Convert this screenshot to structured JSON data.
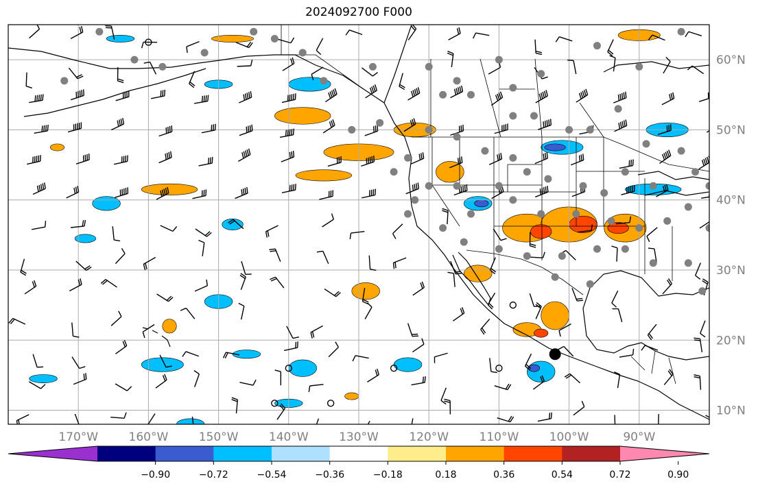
{
  "title": "2024092700 F000",
  "map": {
    "lon_range": [
      -180,
      -80
    ],
    "lat_range": [
      8,
      65
    ],
    "lon_ticks": [
      {
        "value": -170,
        "label": "170°W"
      },
      {
        "value": -160,
        "label": "160°W"
      },
      {
        "value": -150,
        "label": "150°W"
      },
      {
        "value": -140,
        "label": "140°W"
      },
      {
        "value": -130,
        "label": "130°W"
      },
      {
        "value": -120,
        "label": "120°W"
      },
      {
        "value": -110,
        "label": "110°W"
      },
      {
        "value": -100,
        "label": "100°W"
      },
      {
        "value": -90,
        "label": "90°W"
      }
    ],
    "lat_ticks": [
      {
        "value": 10,
        "label": "10°N"
      },
      {
        "value": 20,
        "label": "20°N"
      },
      {
        "value": 30,
        "label": "30°N"
      },
      {
        "value": 40,
        "label": "40°N"
      },
      {
        "value": 50,
        "label": "50°N"
      },
      {
        "value": 60,
        "label": "60°N"
      }
    ],
    "gridlines": true
  },
  "colorbar": {
    "bounds": [
      -0.9,
      -0.72,
      -0.54,
      -0.36,
      -0.18,
      0.18,
      0.36,
      0.54,
      0.72,
      0.9
    ],
    "tick_labels": [
      "−0.90",
      "−0.72",
      "−0.54",
      "−0.36",
      "−0.18",
      "0.18",
      "0.36",
      "0.54",
      "0.72",
      "0.90"
    ],
    "colors": [
      "#9b30d0",
      "#00007f",
      "#3b5bd0",
      "#00bfff",
      "#aee0ff",
      "#ffffff",
      "#ffec8b",
      "#ffa500",
      "#ff4500",
      "#b22222",
      "#ff88b0"
    ],
    "extend": "both"
  },
  "contour_fields": [
    {
      "color": "#ffa500",
      "blobs": [
        [
          -138,
          52,
          4,
          1.2
        ],
        [
          -135,
          43.5,
          4,
          0.8
        ],
        [
          -130,
          46.8,
          5,
          1.2
        ],
        [
          -157,
          41.5,
          4,
          0.8
        ],
        [
          -117,
          44,
          2,
          1.5
        ],
        [
          -106,
          36,
          3.5,
          2
        ],
        [
          -100,
          36.5,
          4,
          2.5
        ],
        [
          -92,
          36,
          3,
          2
        ],
        [
          -113,
          29.5,
          2,
          1.2
        ],
        [
          -129,
          27,
          2,
          1.2
        ],
        [
          -102,
          23.5,
          2,
          2
        ],
        [
          -106,
          21.5,
          2,
          1
        ],
        [
          -90,
          63.5,
          3,
          0.8
        ],
        [
          -122,
          50,
          3,
          1
        ],
        [
          -157,
          22,
          1,
          1
        ],
        [
          -148,
          63,
          3,
          0.5
        ],
        [
          -173,
          47.5,
          1,
          0.5
        ],
        [
          -131,
          12,
          1,
          0.5
        ]
      ]
    },
    {
      "color": "#ff4500",
      "blobs": [
        [
          -104,
          35.5,
          1.5,
          1
        ],
        [
          -98,
          36.5,
          2,
          1.2
        ],
        [
          -93,
          36,
          1.5,
          0.8
        ],
        [
          -104,
          21,
          1,
          0.6
        ]
      ]
    },
    {
      "color": "#00bfff",
      "blobs": [
        [
          -166,
          39.5,
          2,
          1
        ],
        [
          -148,
          36.5,
          1.5,
          0.8
        ],
        [
          -169,
          34.5,
          1.5,
          0.6
        ],
        [
          -150,
          25.5,
          2,
          1
        ],
        [
          -158,
          16.5,
          3,
          1
        ],
        [
          -175,
          14.5,
          2,
          0.6
        ],
        [
          -138,
          16,
          2,
          1.2
        ],
        [
          -123,
          16.5,
          2,
          1
        ],
        [
          -104,
          15.5,
          2,
          1.5
        ],
        [
          -101,
          47.5,
          3,
          1
        ],
        [
          -86,
          50,
          3,
          1
        ],
        [
          -88,
          41.5,
          4,
          0.8
        ],
        [
          -113,
          39.5,
          2,
          1
        ],
        [
          -137,
          56.5,
          3,
          1
        ],
        [
          -150,
          56.5,
          2,
          0.6
        ],
        [
          -164,
          63,
          2,
          0.5
        ],
        [
          -154,
          8,
          2,
          0.8
        ],
        [
          -146,
          18,
          2,
          0.6
        ],
        [
          -140,
          11,
          2,
          0.6
        ]
      ]
    },
    {
      "color": "#3b5bd0",
      "blobs": [
        [
          -112.5,
          39.5,
          1,
          0.5
        ],
        [
          -102,
          47.5,
          1.5,
          0.5
        ],
        [
          -105,
          16,
          0.8,
          0.5
        ]
      ]
    }
  ],
  "wind_barbs": {
    "lon_step": 6,
    "lat_step": 4.5
  },
  "station_markers": [
    [
      -172,
      57
    ],
    [
      -167,
      64
    ],
    [
      -162,
      60
    ],
    [
      -158,
      59
    ],
    [
      -152,
      61
    ],
    [
      -145,
      64
    ],
    [
      -142,
      63
    ],
    [
      -138,
      61
    ],
    [
      -128,
      59
    ],
    [
      -120,
      59
    ],
    [
      -116,
      57
    ],
    [
      -110,
      60
    ],
    [
      -108,
      56
    ],
    [
      -104,
      58
    ],
    [
      -96,
      62
    ],
    [
      -90,
      59
    ],
    [
      -84,
      64
    ],
    [
      -118,
      55
    ],
    [
      -114,
      55
    ],
    [
      -108,
      52
    ],
    [
      -105,
      52
    ],
    [
      -100,
      50
    ],
    [
      -97,
      50
    ],
    [
      -93,
      53
    ],
    [
      -89,
      48
    ],
    [
      -84,
      47
    ],
    [
      -92,
      44
    ],
    [
      -88,
      42
    ],
    [
      -82,
      44
    ],
    [
      -80,
      42
    ],
    [
      -95,
      41
    ],
    [
      -98,
      42
    ],
    [
      -103,
      43
    ],
    [
      -108,
      46
    ],
    [
      -112,
      47
    ],
    [
      -116,
      49
    ],
    [
      -120,
      50
    ],
    [
      -123,
      46
    ],
    [
      -125,
      44
    ],
    [
      -120,
      42
    ],
    [
      -116,
      42
    ],
    [
      -110,
      42
    ],
    [
      -106,
      44
    ],
    [
      -114,
      38
    ],
    [
      -108,
      40
    ],
    [
      -104,
      38
    ],
    [
      -99,
      38
    ],
    [
      -94,
      37
    ],
    [
      -90,
      36
    ],
    [
      -86,
      37
    ],
    [
      -83,
      39
    ],
    [
      -80,
      36
    ],
    [
      -122,
      40
    ],
    [
      -118,
      36
    ],
    [
      -115,
      34
    ],
    [
      -110,
      33
    ],
    [
      -106,
      32
    ],
    [
      -101,
      32
    ],
    [
      -96,
      33
    ],
    [
      -92,
      33
    ],
    [
      -88,
      31
    ],
    [
      -83,
      31
    ],
    [
      -81,
      27
    ],
    [
      -97,
      28
    ],
    [
      -102,
      29
    ],
    [
      -123,
      38
    ],
    [
      -127,
      51
    ],
    [
      -131,
      50
    ],
    [
      -135,
      57
    ]
  ],
  "open_markers": [
    [
      -160,
      62.5
    ],
    [
      -110,
      16
    ],
    [
      -125,
      16
    ],
    [
      -140,
      16
    ],
    [
      -142,
      11
    ],
    [
      -134,
      11
    ],
    [
      -108,
      25
    ]
  ],
  "highlight_marker": [
    -102,
    18
  ]
}
